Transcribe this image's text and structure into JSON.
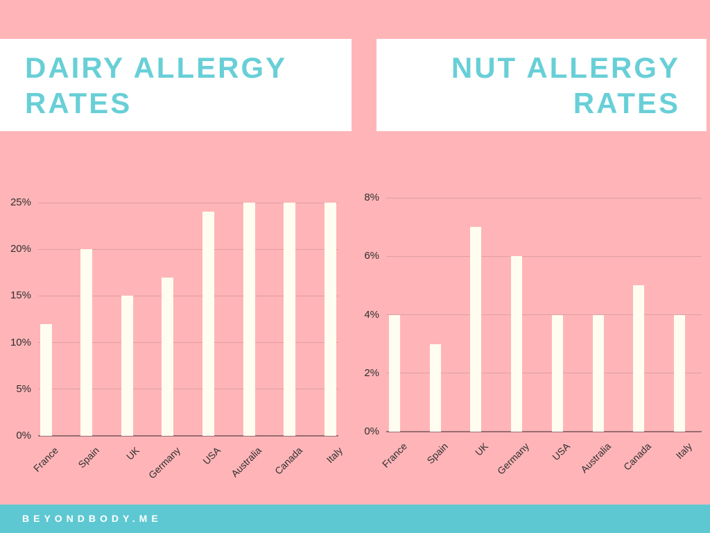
{
  "colors": {
    "background": "#ffb5b8",
    "panel": "#ffffff",
    "title_text": "#68cfd7",
    "footer_bg": "#5ec8d2",
    "footer_text": "#ffffff",
    "bar": "#fffdf0",
    "gridline": "#d1989e",
    "baseline": "#7d5a60",
    "axis_text": "#2e2e2e"
  },
  "titles": {
    "left": {
      "lines": [
        "DAIRY ALLERGY",
        "RATES"
      ]
    },
    "right": {
      "lines": [
        "NUT ALLERGY",
        "RATES"
      ]
    }
  },
  "footer": {
    "text": "BEYONDBODY.ME"
  },
  "chart_data": [
    {
      "type": "bar",
      "title": "DAIRY ALLERGY RATES",
      "categories": [
        "France",
        "Spain",
        "UK",
        "Germany",
        "USA",
        "Australia",
        "Canada",
        "Italy"
      ],
      "values": [
        12,
        20,
        15,
        17,
        24,
        25,
        25,
        25
      ],
      "unit": "%",
      "xlabel": "",
      "ylabel": "",
      "ylim": [
        0,
        25
      ],
      "yticks": [
        "0%",
        "5%",
        "10%",
        "15%",
        "20%",
        "25%"
      ],
      "grid": true,
      "legend": "none",
      "bar_color": "#fffdf0"
    },
    {
      "type": "bar",
      "title": "NUT ALLERGY RATES",
      "categories": [
        "France",
        "Spain",
        "UK",
        "Germany",
        "USA",
        "Australia",
        "Canada",
        "Italy"
      ],
      "values": [
        4,
        3,
        7,
        6,
        4,
        4,
        5,
        4
      ],
      "unit": "%",
      "xlabel": "",
      "ylabel": "",
      "ylim": [
        0,
        8
      ],
      "yticks": [
        "0%",
        "2%",
        "4%",
        "6%",
        "8%"
      ],
      "grid": true,
      "legend": "none",
      "bar_color": "#fffdf0"
    }
  ]
}
